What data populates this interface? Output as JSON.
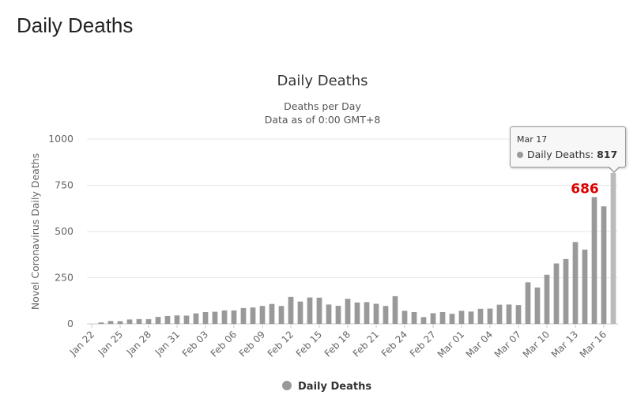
{
  "page": {
    "heading": "Daily Deaths"
  },
  "chart_data": {
    "type": "bar",
    "title": "Daily Deaths",
    "subtitle_line1": "Deaths per Day",
    "subtitle_line2": "Data as of 0:00 GMT+8",
    "ylabel": "Novel Coronavirus Daily Deaths",
    "ylim": [
      0,
      1000
    ],
    "yticks": [
      0,
      250,
      500,
      750,
      1000
    ],
    "grid": true,
    "legend_position": "bottom-center",
    "series_color": "#999999",
    "highlight_color": "#bbbbbb",
    "annotation_color": "#dd0000",
    "categories": [
      "Jan 22",
      "Jan 23",
      "Jan 24",
      "Jan 25",
      "Jan 26",
      "Jan 27",
      "Jan 28",
      "Jan 29",
      "Jan 30",
      "Jan 31",
      "Feb 01",
      "Feb 02",
      "Feb 03",
      "Feb 04",
      "Feb 05",
      "Feb 06",
      "Feb 07",
      "Feb 08",
      "Feb 09",
      "Feb 10",
      "Feb 11",
      "Feb 12",
      "Feb 13",
      "Feb 14",
      "Feb 15",
      "Feb 16",
      "Feb 17",
      "Feb 18",
      "Feb 19",
      "Feb 20",
      "Feb 21",
      "Feb 22",
      "Feb 23",
      "Feb 24",
      "Feb 25",
      "Feb 26",
      "Feb 27",
      "Feb 28",
      "Feb 29",
      "Mar 01",
      "Mar 02",
      "Mar 03",
      "Mar 04",
      "Mar 05",
      "Mar 06",
      "Mar 07",
      "Mar 08",
      "Mar 09",
      "Mar 10",
      "Mar 11",
      "Mar 12",
      "Mar 13",
      "Mar 14",
      "Mar 15",
      "Mar 16",
      "Mar 17"
    ],
    "tick_labels": [
      "Jan 22",
      "Jan 25",
      "Jan 28",
      "Jan 31",
      "Feb 03",
      "Feb 06",
      "Feb 09",
      "Feb 12",
      "Feb 15",
      "Feb 18",
      "Feb 21",
      "Feb 24",
      "Feb 27",
      "Mar 01",
      "Mar 04",
      "Mar 07",
      "Mar 10",
      "Mar 13",
      "Mar 16"
    ],
    "series": [
      {
        "name": "Daily Deaths",
        "values": [
          0,
          8,
          16,
          15,
          24,
          26,
          26,
          38,
          43,
          46,
          45,
          57,
          64,
          66,
          73,
          73,
          86,
          89,
          97,
          108,
          97,
          146,
          121,
          143,
          142,
          105,
          98,
          136,
          116,
          118,
          109,
          97,
          150,
          71,
          64,
          37,
          58,
          64,
          55,
          71,
          67,
          82,
          83,
          104,
          105,
          102,
          225,
          197,
          266,
          327,
          351,
          443,
          402,
          686,
          636,
          817
        ]
      }
    ],
    "annotation": {
      "label": "686",
      "category": "Mar 15"
    },
    "tooltip": {
      "date": "Mar 17",
      "series": "Daily Deaths",
      "value_text": "817",
      "category": "Mar 17"
    }
  }
}
